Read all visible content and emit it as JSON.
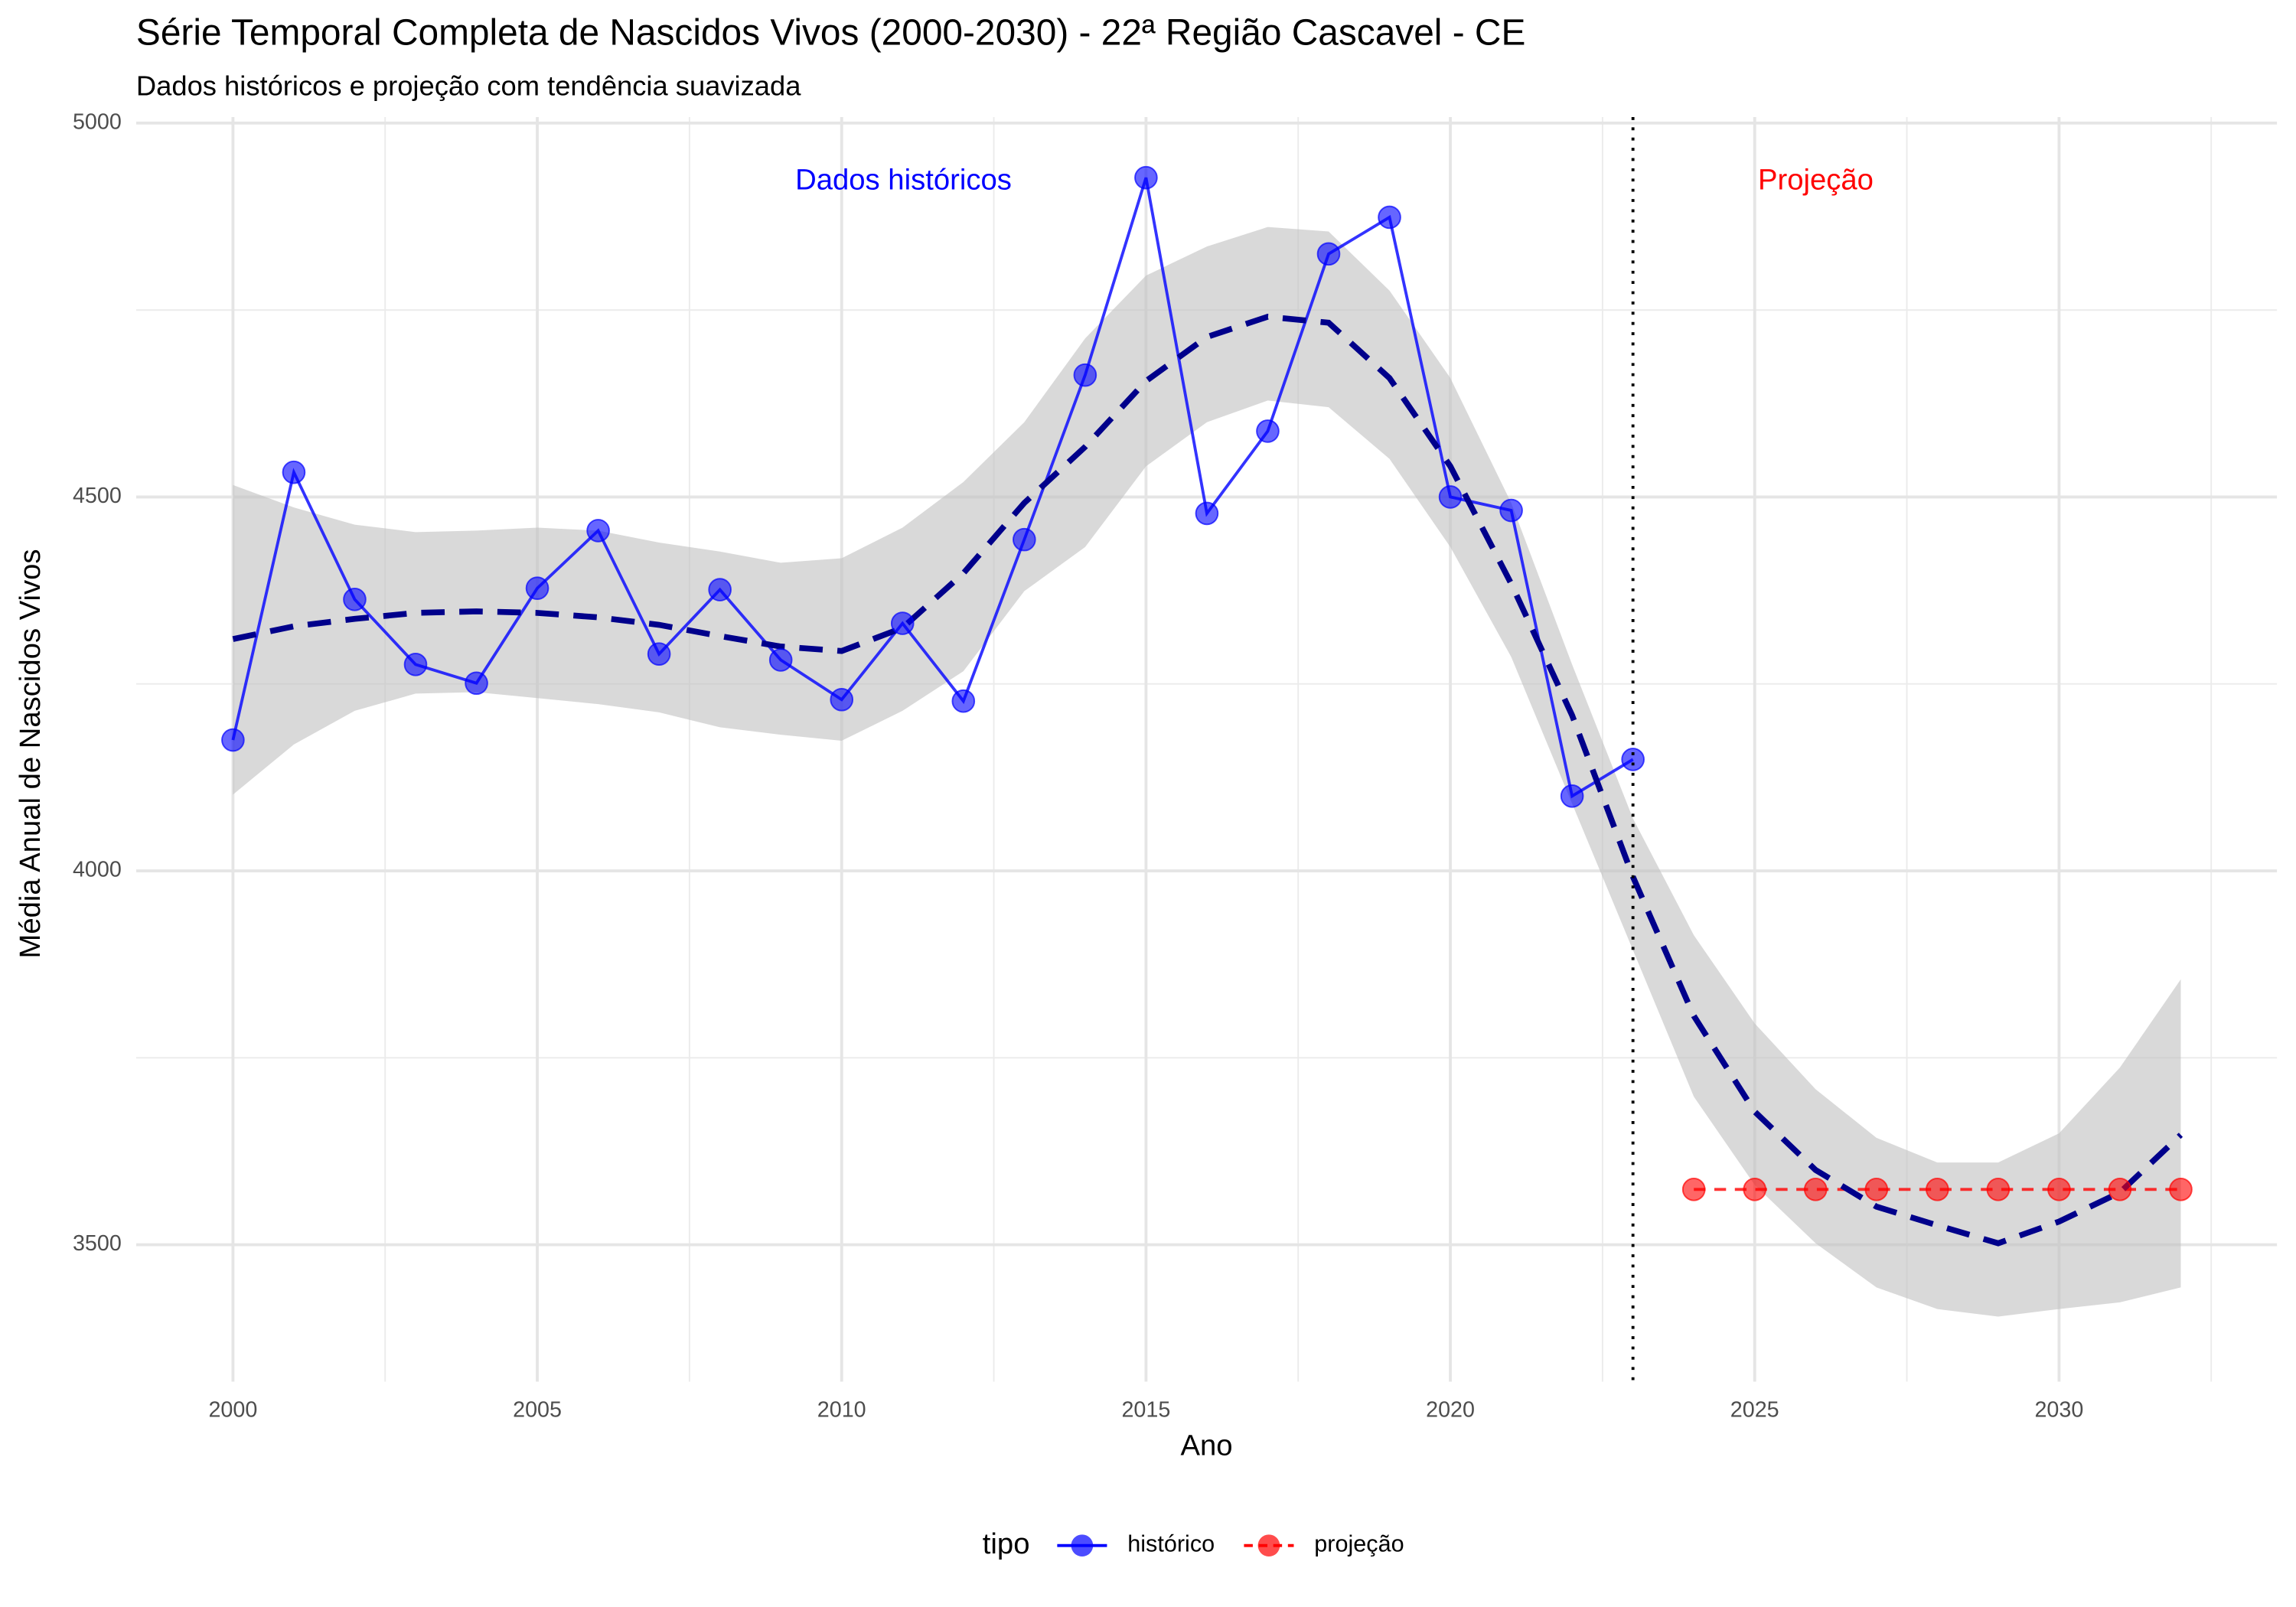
{
  "chart_data": {
    "type": "line",
    "title": "Série Temporal Completa de Nascidos Vivos (2000-2030) -  22ª Região Cascavel - CE",
    "subtitle": "Dados históricos e projeção com tendência suavizada",
    "x_label": "Ano",
    "y_label": "Média Anual de Nascidos Vivos",
    "legend_title": "tipo",
    "legend_position": "bottom",
    "grid": true,
    "xlim": [
      1998.41,
      2033.58
    ],
    "ylim": [
      3317,
      5008
    ],
    "xticks": [
      2000,
      2005,
      2010,
      2015,
      2020,
      2025,
      2030
    ],
    "yticks": [
      3500,
      4000,
      4500,
      5000
    ],
    "vline": 2023,
    "annotations": [
      {
        "text": "Dados históricos",
        "color": "#0000ff"
      },
      {
        "text": "Projeção",
        "color": "#ff0000"
      }
    ],
    "series": [
      {
        "name": "histórico",
        "color": "#0000ff",
        "dashed": false,
        "x": [
          2000,
          2001,
          2002,
          2003,
          2004,
          2005,
          2006,
          2007,
          2008,
          2009,
          2010,
          2011,
          2012,
          2013,
          2014,
          2015,
          2016,
          2017,
          2018,
          2019,
          2020,
          2021,
          2022,
          2023
        ],
        "values": [
          4175,
          4533,
          4363,
          4276,
          4251,
          4378,
          4455,
          4290,
          4376,
          4282,
          4229,
          4331,
          4227,
          4443,
          4663,
          4927,
          4478,
          4588,
          4825,
          4874,
          4500,
          4482,
          4100,
          4149
        ]
      },
      {
        "name": "projeção",
        "color": "#ff0000",
        "dashed": true,
        "x": [
          2024,
          2025,
          2026,
          2027,
          2028,
          2029,
          2030,
          2031,
          2032
        ],
        "values": [
          3574,
          3574,
          3574,
          3574,
          3574,
          3574,
          3574,
          3574,
          3574
        ]
      }
    ],
    "smooth": {
      "color": "#00008b",
      "band_color": "#bfbfbf",
      "x": [
        2000,
        2001,
        2002,
        2003,
        2004,
        2005,
        2006,
        2007,
        2008,
        2009,
        2010,
        2011,
        2012,
        2013,
        2014,
        2015,
        2016,
        2017,
        2018,
        2019,
        2020,
        2021,
        2022,
        2023,
        2024,
        2025,
        2026,
        2027,
        2028,
        2029,
        2030,
        2031,
        2032
      ],
      "values": [
        4310,
        4327,
        4337,
        4345,
        4347,
        4345,
        4339,
        4329,
        4314,
        4300,
        4294,
        4325,
        4398,
        4492,
        4567,
        4655,
        4714,
        4741,
        4733,
        4659,
        4541,
        4384,
        4208,
        3992,
        3806,
        3678,
        3600,
        3551,
        3526,
        3502,
        3531,
        3570,
        3647
      ],
      "upper": [
        4516,
        4486,
        4463,
        4453,
        4455,
        4459,
        4455,
        4439,
        4427,
        4412,
        4418,
        4459,
        4520,
        4600,
        4712,
        4796,
        4835,
        4861,
        4855,
        4776,
        4659,
        4492,
        4276,
        4070,
        3914,
        3796,
        3708,
        3643,
        3610,
        3610,
        3649,
        3737,
        3855
      ],
      "lower": [
        4102,
        4169,
        4214,
        4237,
        4239,
        4231,
        4223,
        4212,
        4192,
        4182,
        4174,
        4214,
        4267,
        4374,
        4433,
        4541,
        4600,
        4629,
        4620,
        4551,
        4433,
        4286,
        4090,
        3894,
        3698,
        3580,
        3502,
        3443,
        3414,
        3404,
        3414,
        3423,
        3443
      ]
    }
  }
}
